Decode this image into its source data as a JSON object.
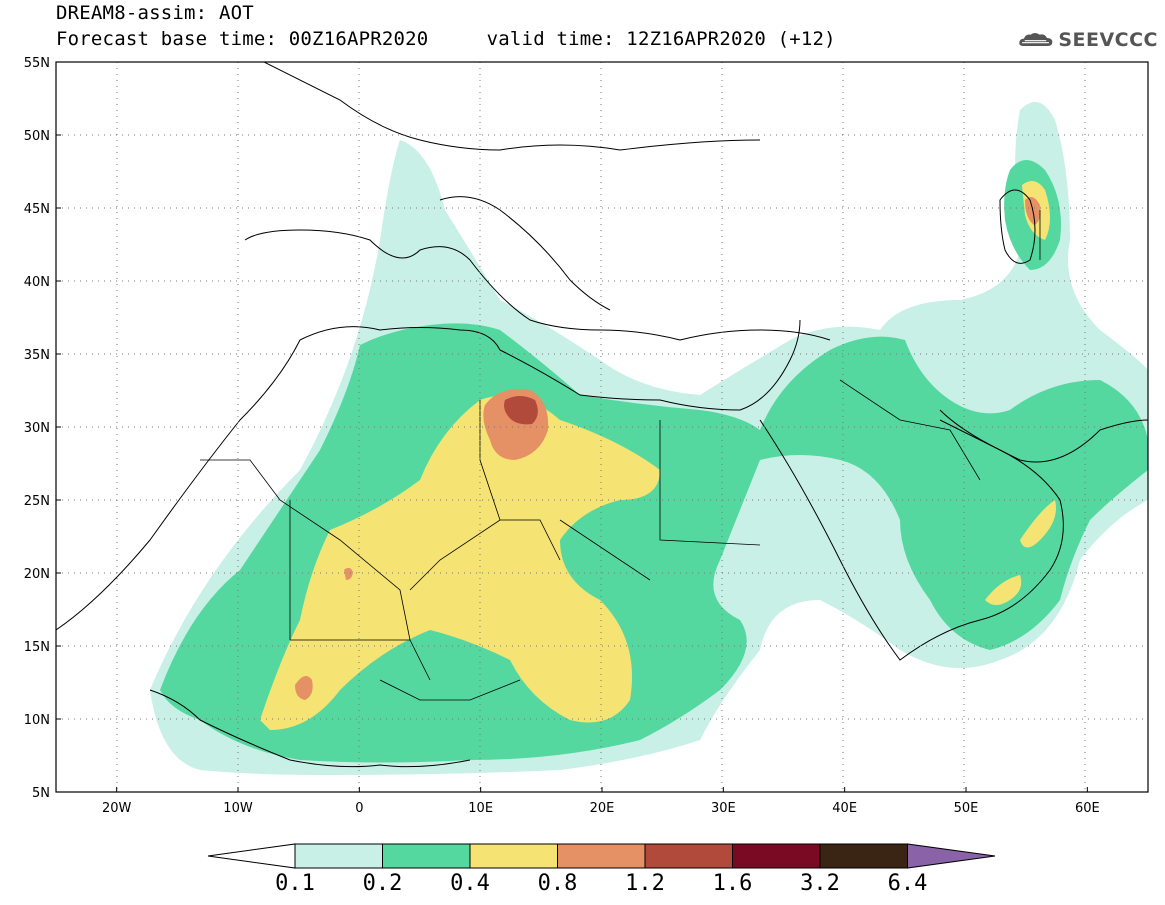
{
  "header": {
    "title_line1": "DREAM8-assim: AOT",
    "title_line2": "Forecast base time: 00Z16APR2020     valid time: 12Z16APR2020 (+12)"
  },
  "logo": {
    "text": "SEEVCCC",
    "icon": "cloud-icon",
    "color": "#555555"
  },
  "map": {
    "lat_labels": [
      "55N",
      "50N",
      "45N",
      "40N",
      "35N",
      "30N",
      "25N",
      "20N",
      "15N",
      "10N",
      "5N"
    ],
    "lon_labels": [
      "20W",
      "10W",
      "0",
      "10E",
      "20E",
      "30E",
      "40E",
      "50E",
      "60E"
    ],
    "lat_range": [
      5,
      55
    ],
    "lon_range": [
      -25,
      65
    ],
    "gridlines": "dotted"
  },
  "legend": {
    "breaks": [
      "0.1",
      "0.2",
      "0.4",
      "0.8",
      "1.2",
      "1.6",
      "3.2",
      "6.4"
    ],
    "colors": [
      "#ffffff",
      "#c8f0e6",
      "#55d8a0",
      "#f5e474",
      "#e69066",
      "#b24a3c",
      "#7a0a24",
      "#3a2414",
      "#8a62a8"
    ]
  }
}
